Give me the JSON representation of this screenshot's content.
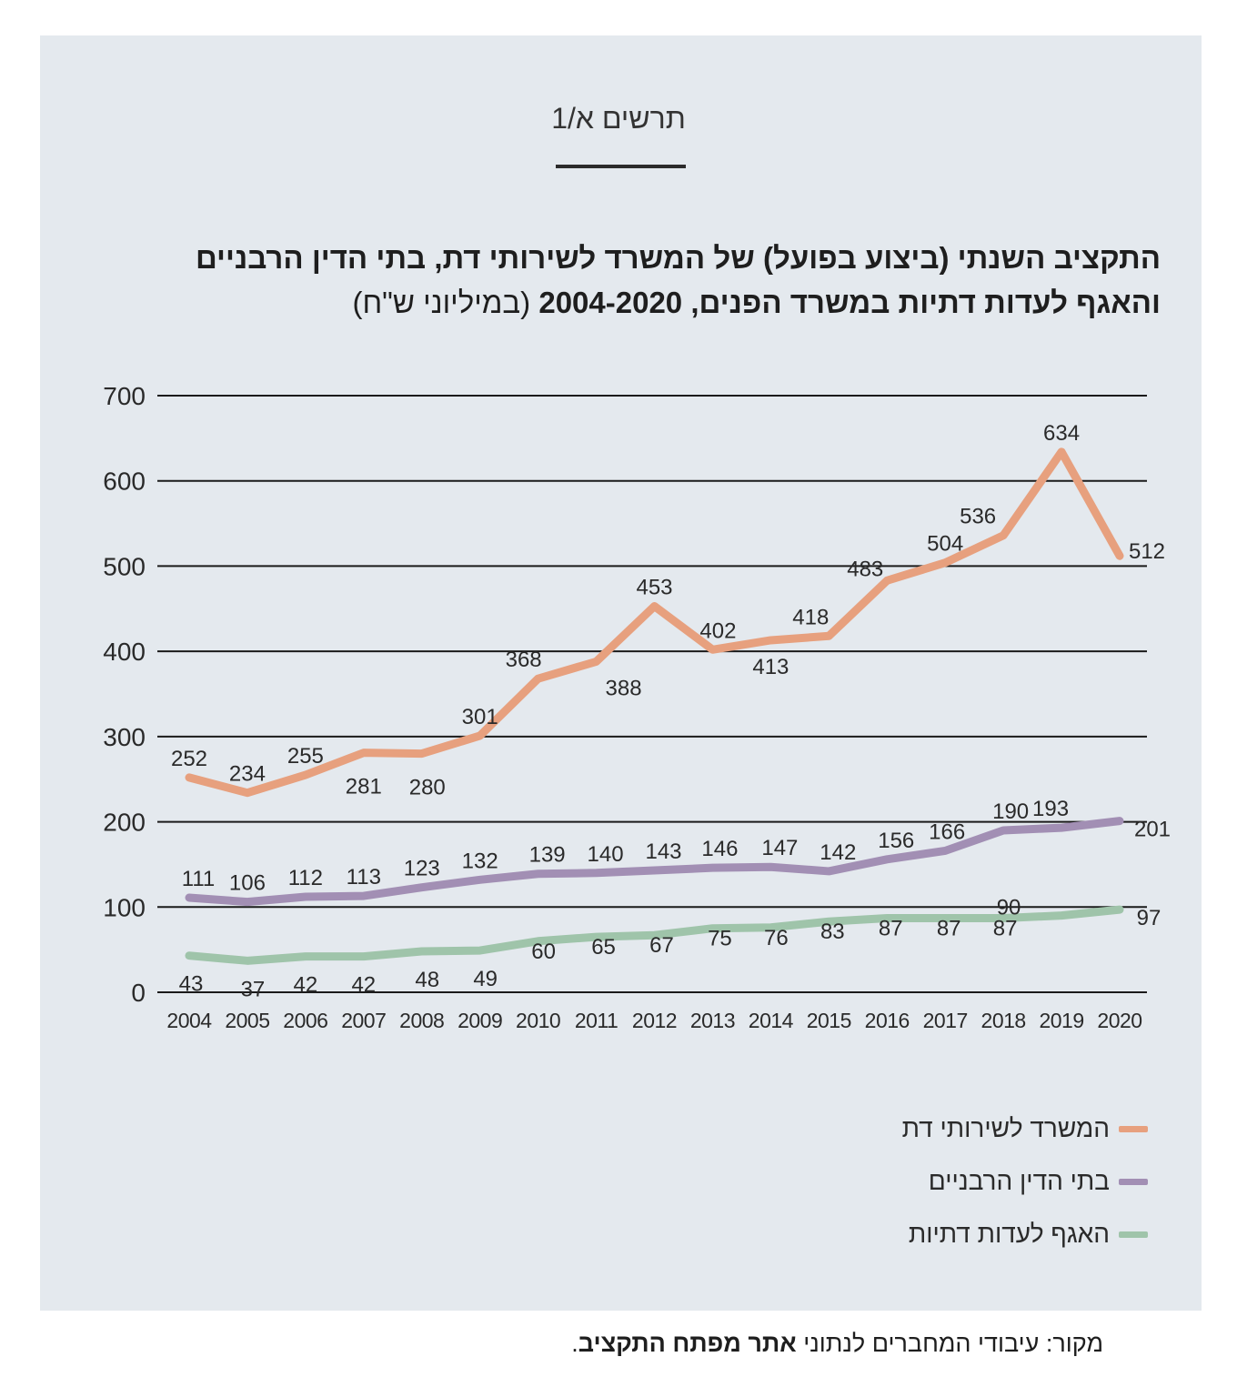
{
  "figure_label": "תרשים א/1",
  "title_line1": "התקציב השנתי (ביצוע בפועל) של המשרד לשירותי דת, בתי הדין הרבניים",
  "title_line2_bold": "והאגף לעדות דתיות במשרד הפנים, 2004-2020",
  "title_line2_unit": "(במיליוני ש\"ח)",
  "source": {
    "prefix": "מקור: עיבודי המחברים לנתוני ",
    "bold": "אתר מפתח התקציב",
    "suffix": "."
  },
  "colors": {
    "panel": "#e4e9ee",
    "religious_services": "#e7a07e",
    "rabbinical_courts": "#a28fb4",
    "religious_communities": "#9fc4aa"
  },
  "chart_data": {
    "type": "line",
    "x": [
      2004,
      2005,
      2006,
      2007,
      2008,
      2009,
      2010,
      2011,
      2012,
      2013,
      2014,
      2015,
      2016,
      2017,
      2018,
      2019,
      2020
    ],
    "ylim": [
      0,
      700
    ],
    "yticks": [
      0,
      100,
      200,
      300,
      400,
      500,
      600,
      700
    ],
    "grid": true,
    "legend_position": "bottom-right",
    "series": [
      {
        "name": "המשרד לשירותי דת",
        "color": "#e7a07e",
        "values": [
          252,
          234,
          255,
          281,
          280,
          301,
          368,
          388,
          453,
          402,
          413,
          418,
          483,
          504,
          536,
          634,
          512
        ]
      },
      {
        "name": "בתי הדין הרבניים",
        "color": "#a28fb4",
        "values": [
          111,
          106,
          112,
          113,
          123,
          132,
          139,
          140,
          143,
          146,
          147,
          142,
          156,
          166,
          190,
          193,
          201
        ]
      },
      {
        "name": "האגף לעדות דתיות",
        "color": "#9fc4aa",
        "values": [
          43,
          37,
          42,
          42,
          48,
          49,
          60,
          65,
          67,
          75,
          76,
          83,
          87,
          87,
          87,
          90,
          97
        ]
      }
    ]
  }
}
